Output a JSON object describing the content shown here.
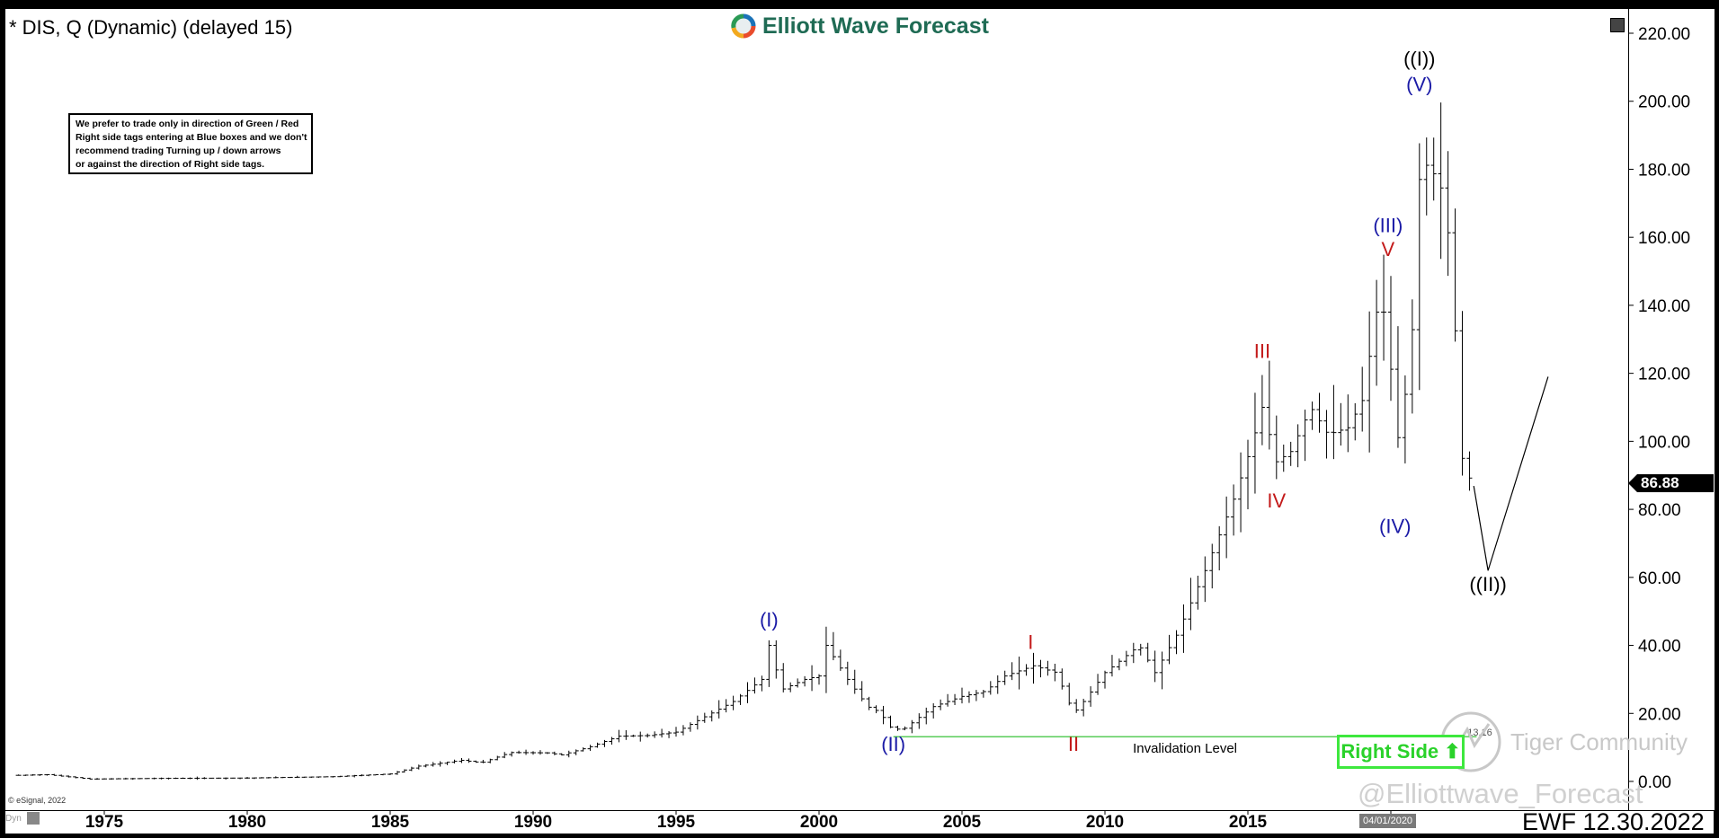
{
  "header": {
    "symbol": "* DIS, Q (Dynamic) (delayed 15)",
    "logo": "Elliott Wave Forecast"
  },
  "note_lines": [
    "We prefer to trade only in direction of Green / Red",
    "Right side tags entering at Blue boxes and we don't",
    "recommend trading Turning up / down arrows",
    "or against the direction of Right side tags."
  ],
  "footer": {
    "esignal": "© eSignal, 2022",
    "dyn": "Dyn",
    "date_badge": "04/01/2020",
    "ewf": "EWF 12.30.2022",
    "watermark_handle": "@Elliottwave_Forecast",
    "watermark_community": "Tiger Community"
  },
  "right_side": {
    "label": "Right Side",
    "arrow": "⬆"
  },
  "colors": {
    "blue": "#1a1aa6",
    "red": "#c31a1a",
    "black": "#000000",
    "green": "#3ee83e",
    "inval": "#22bb22"
  },
  "chart_data": {
    "type": "ohlc-bar",
    "title": "* DIS, Q (Dynamic) (delayed 15)",
    "ylim": [
      0,
      220
    ],
    "xlim": [
      1971.5,
      2026.5
    ],
    "yticks": [
      "220.00",
      "200.00",
      "180.00",
      "160.00",
      "140.00",
      "120.00",
      "100.00",
      "80.00",
      "60.00",
      "40.00",
      "20.00",
      "0.00"
    ],
    "xticks": [
      "1975",
      "1980",
      "1985",
      "1990",
      "1995",
      "2000",
      "2005",
      "2010",
      "2015",
      "2020"
    ],
    "last_price": "86.88",
    "invalidation": {
      "label": "Invalidation Level",
      "value": 13.16,
      "value_label": "13.16",
      "from": 2002.6,
      "to": 2023.0
    },
    "anchors": [
      [
        1972.0,
        1.8
      ],
      [
        1973.0,
        2.0
      ],
      [
        1974.5,
        0.7
      ],
      [
        1977.0,
        0.9
      ],
      [
        1980.0,
        1.0
      ],
      [
        1983.0,
        1.4
      ],
      [
        1985.0,
        2.2
      ],
      [
        1986.0,
        4.5
      ],
      [
        1987.5,
        6.2
      ],
      [
        1988.2,
        5.5
      ],
      [
        1989.2,
        8.5
      ],
      [
        1990.5,
        8.4
      ],
      [
        1991.0,
        7.8
      ],
      [
        1992.0,
        10.2
      ],
      [
        1993.0,
        13.3
      ],
      [
        1994.0,
        13.5
      ],
      [
        1995.0,
        14.5
      ],
      [
        1996.0,
        19.0
      ],
      [
        1997.0,
        23.5
      ],
      [
        1998.0,
        30.0
      ],
      [
        1998.25,
        40.0
      ],
      [
        1998.7,
        27.0
      ],
      [
        1999.5,
        30.0
      ],
      [
        2000.0,
        31.0
      ],
      [
        2000.25,
        40.0
      ],
      [
        2001.0,
        30.0
      ],
      [
        2001.7,
        22.0
      ],
      [
        2002.1,
        20.5
      ],
      [
        2002.5,
        16.0
      ],
      [
        2002.9,
        15.0
      ],
      [
        2004.0,
        22.0
      ],
      [
        2005.0,
        25.0
      ],
      [
        2005.8,
        26.5
      ],
      [
        2006.5,
        31.0
      ],
      [
        2007.5,
        34.0
      ],
      [
        2008.3,
        32.0
      ],
      [
        2008.9,
        20.0
      ],
      [
        2009.3,
        24.0
      ],
      [
        2010.0,
        32.0
      ],
      [
        2011.2,
        40.0
      ],
      [
        2011.75,
        32.0
      ],
      [
        2012.5,
        43.0
      ],
      [
        2013.5,
        62.0
      ],
      [
        2014.5,
        83.0
      ],
      [
        2015.1,
        98.0
      ],
      [
        2015.5,
        110.0
      ],
      [
        2016.0,
        94.0
      ],
      [
        2016.5,
        97.0
      ],
      [
        2017.2,
        110.0
      ],
      [
        2017.8,
        102.0
      ],
      [
        2018.5,
        104.0
      ],
      [
        2019.0,
        112.0
      ],
      [
        2019.5,
        138.0
      ],
      [
        2019.9,
        138.0
      ],
      [
        2020.15,
        96.0
      ],
      [
        2020.7,
        124.0
      ],
      [
        2021.0,
        177.0
      ],
      [
        2021.3,
        182.0
      ],
      [
        2021.9,
        172.0
      ],
      [
        2022.2,
        140.0
      ],
      [
        2022.5,
        95.0
      ],
      [
        2022.85,
        86.88
      ]
    ],
    "projection": [
      [
        2022.9,
        86.88
      ],
      [
        2023.4,
        62.0
      ],
      [
        2025.5,
        119.0
      ]
    ],
    "labels": [
      {
        "text": "(I)",
        "x": 1998.25,
        "y": 45.5,
        "color": "blue"
      },
      {
        "text": "(II)",
        "x": 2002.6,
        "y": 9.0,
        "color": "blue"
      },
      {
        "text": "I",
        "x": 2007.4,
        "y": 39.0,
        "color": "red"
      },
      {
        "text": "II",
        "x": 2008.9,
        "y": 9.0,
        "color": "red"
      },
      {
        "text": "III",
        "x": 2015.5,
        "y": 124.5,
        "color": "red"
      },
      {
        "text": "IV",
        "x": 2016.0,
        "y": 80.5,
        "color": "red"
      },
      {
        "text": "(III)",
        "x": 2019.9,
        "y": 161.5,
        "color": "blue"
      },
      {
        "text": "V",
        "x": 2019.9,
        "y": 154.5,
        "color": "red"
      },
      {
        "text": "(IV)",
        "x": 2020.15,
        "y": 73.0,
        "color": "blue"
      },
      {
        "text": "((I))",
        "x": 2021.0,
        "y": 210.5,
        "color": "black"
      },
      {
        "text": "(V)",
        "x": 2021.0,
        "y": 203.0,
        "color": "blue"
      },
      {
        "text": "((II))",
        "x": 2023.4,
        "y": 56.0,
        "color": "black"
      }
    ]
  }
}
